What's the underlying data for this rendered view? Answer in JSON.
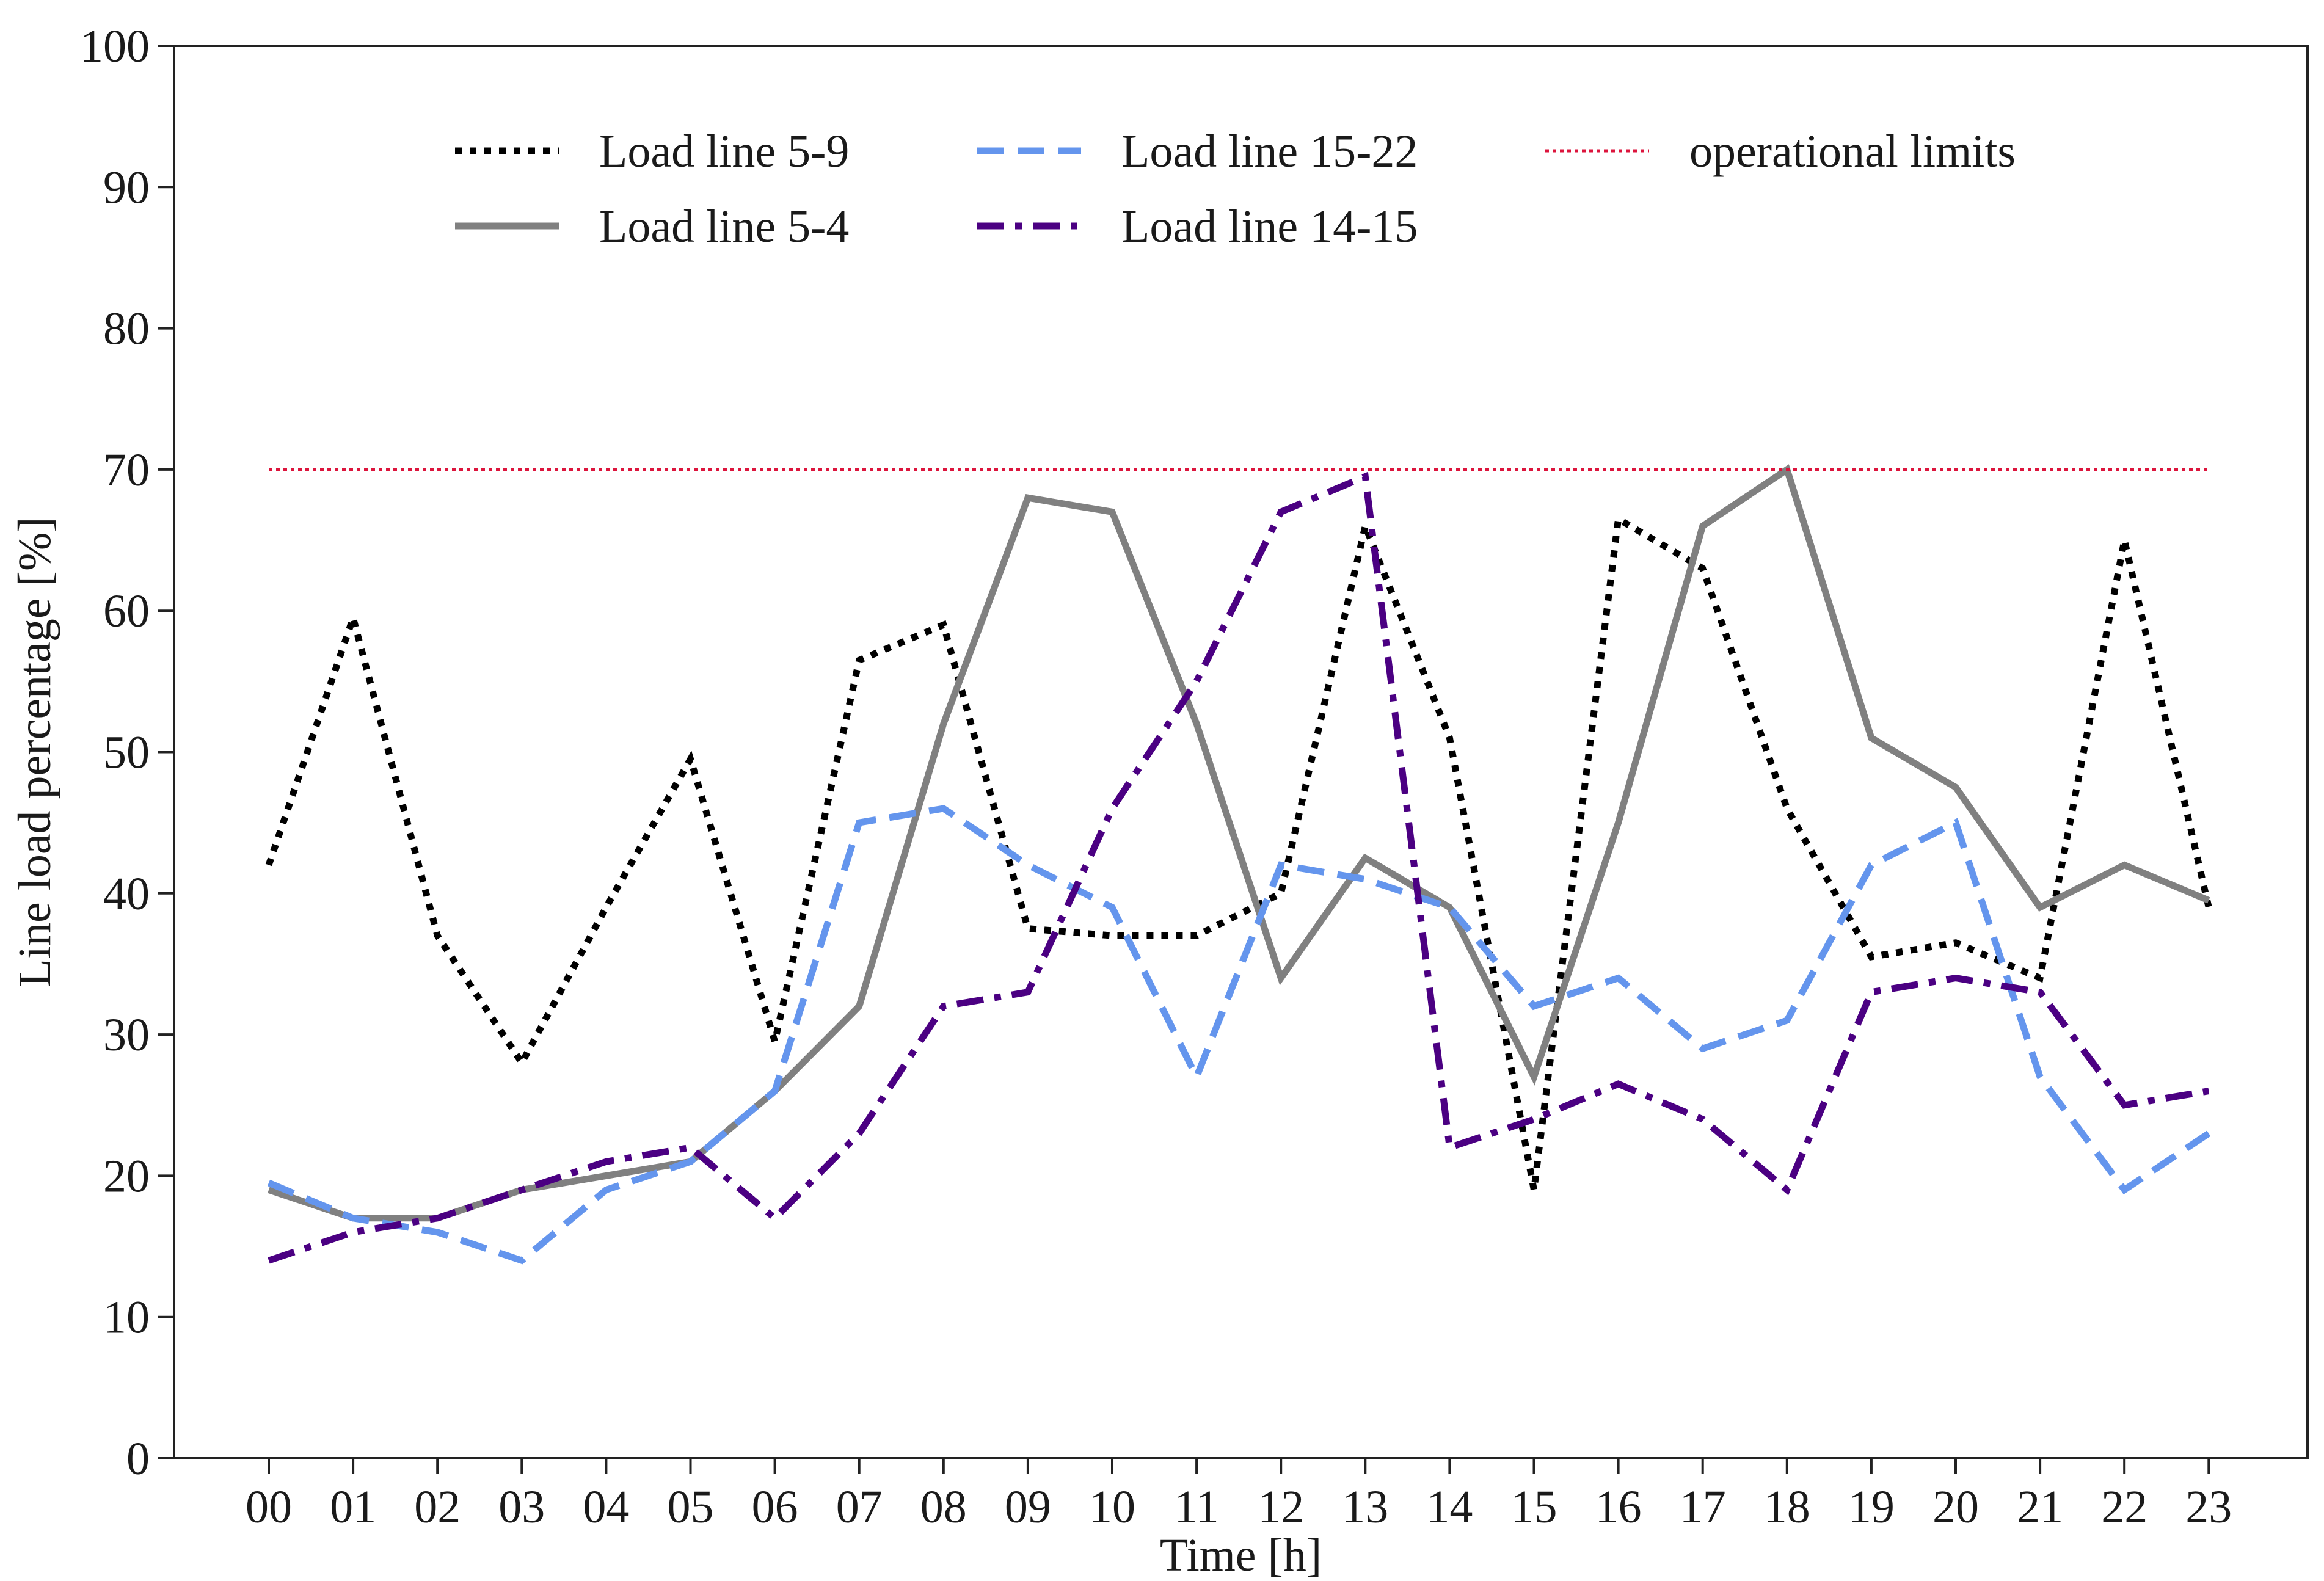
{
  "chart_data": {
    "type": "line",
    "xlabel": "Time [h]",
    "ylabel": "Line load percentage [%]",
    "categories": [
      "00",
      "01",
      "02",
      "03",
      "04",
      "05",
      "06",
      "07",
      "08",
      "09",
      "10",
      "11",
      "12",
      "13",
      "14",
      "15",
      "16",
      "17",
      "18",
      "19",
      "20",
      "21",
      "22",
      "23"
    ],
    "ylim": [
      0,
      100
    ],
    "yticks": [
      0,
      10,
      20,
      30,
      40,
      50,
      60,
      70,
      80,
      90,
      100
    ],
    "grid": false,
    "legend_position": "top",
    "series": [
      {
        "name": "Load line 5-9",
        "style": "dotted",
        "color": "#000000",
        "values": [
          42,
          59.5,
          37,
          28,
          39,
          49.5,
          29.5,
          56.5,
          59,
          37.5,
          37,
          37,
          40,
          66,
          51,
          19,
          66.5,
          63,
          46,
          35.5,
          36.5,
          34,
          65,
          39
        ]
      },
      {
        "name": "Load line 5-4",
        "style": "solid",
        "color": "#808080",
        "values": [
          19,
          17,
          17,
          19,
          20,
          21,
          26,
          32,
          52,
          68,
          67,
          52,
          34,
          42.5,
          39,
          27,
          45,
          66,
          70,
          51,
          47.5,
          39,
          42,
          39.5
        ]
      },
      {
        "name": "Load line 15-22",
        "style": "dashed",
        "color": "#6495ED",
        "values": [
          19.5,
          17,
          16,
          14,
          19,
          21,
          26,
          45,
          46,
          42,
          39,
          27,
          42,
          41,
          39,
          32,
          34,
          29,
          31,
          42,
          45,
          27,
          19,
          23
        ]
      },
      {
        "name": "Load line 14-15",
        "style": "dashdot",
        "color": "#4B0082",
        "values": [
          14,
          16,
          17,
          19,
          21,
          22,
          17,
          23,
          32,
          33,
          46,
          55,
          67,
          69.5,
          22,
          24,
          26.5,
          24,
          19,
          33,
          34,
          33,
          25,
          26
        ]
      },
      {
        "name": "operational limits",
        "style": "finedotted",
        "color": "#DC143C",
        "values": [
          70,
          70,
          70,
          70,
          70,
          70,
          70,
          70,
          70,
          70,
          70,
          70,
          70,
          70,
          70,
          70,
          70,
          70,
          70,
          70,
          70,
          70,
          70,
          70
        ]
      }
    ]
  }
}
